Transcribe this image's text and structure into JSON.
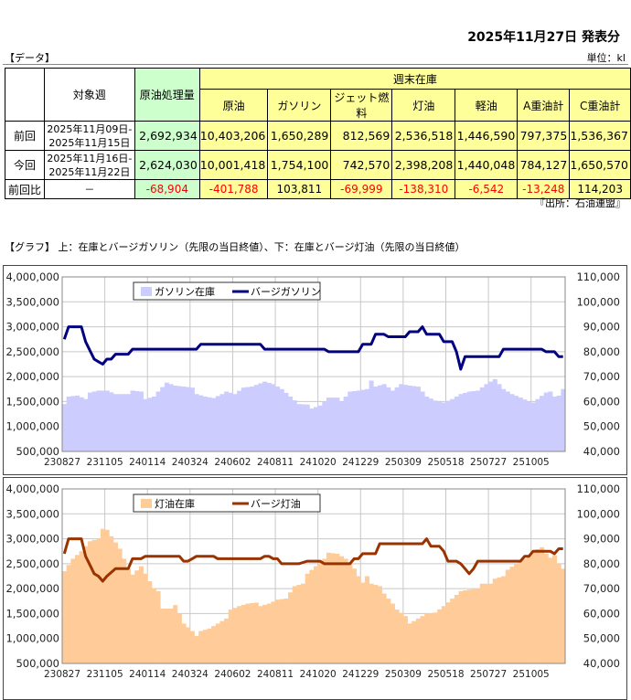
{
  "header": {
    "published": "2025年11月27日 発表分",
    "data_label": "【データ】",
    "unit": "単位：kl"
  },
  "table": {
    "col_week": "対象週",
    "col_crude_processing": "原油処理量",
    "group_stock": "週末在庫",
    "stock_cols": [
      "原油",
      "ガソリン",
      "ジェット燃料",
      "灯油",
      "軽油",
      "A重油計",
      "C重油計"
    ],
    "rows": [
      {
        "label": "前回",
        "week1": "2025年11月09日-",
        "week2": "2025年11月15日",
        "values": [
          "2,692,934",
          "10,403,206",
          "1,650,289",
          "812,569",
          "2,536,518",
          "1,446,590",
          "797,375",
          "1,536,367"
        ]
      },
      {
        "label": "今回",
        "week1": "2025年11月16日-",
        "week2": "2025年11月22日",
        "values": [
          "2,624,030",
          "10,001,418",
          "1,754,100",
          "742,570",
          "2,398,208",
          "1,440,048",
          "784,127",
          "1,650,570"
        ]
      },
      {
        "label": "前回比",
        "week1": "－",
        "values": [
          "-68,904",
          "-401,788",
          "103,811",
          "-69,999",
          "-138,310",
          "-6,542",
          "-13,248",
          "114,203"
        ]
      }
    ],
    "source": "『出所：石油連盟』"
  },
  "graph_label": "【グラフ】 上：在庫とバージガソリン（先限の当日終値）、下：在庫とバージ灯油（先限の当日終値）",
  "chart_data": [
    {
      "type": "bar+line",
      "title": "在庫とバージガソリン",
      "x_tick_labels": [
        "230827",
        "231105",
        "240114",
        "240324",
        "240602",
        "240811",
        "241020",
        "241229",
        "250309",
        "250518",
        "250727",
        "251005"
      ],
      "weeks": 118,
      "tick_every_weeks": 10,
      "ylim_left": [
        500000,
        4000000
      ],
      "ylim_right": [
        40000,
        110000
      ],
      "left_ticks": [
        "500,000",
        "1,000,000",
        "1,500,000",
        "2,000,000",
        "2,500,000",
        "3,000,000",
        "3,500,000",
        "4,000,000"
      ],
      "right_ticks": [
        "40,000",
        "50,000",
        "60,000",
        "70,000",
        "80,000",
        "90,000",
        "100,000",
        "110,000"
      ],
      "legend": "top-left",
      "bar_series": {
        "name": "ガソリン在庫",
        "color": "#ccccff",
        "points": [
          [
            0,
            1450000
          ],
          [
            1,
            1600000
          ],
          [
            3,
            1620000
          ],
          [
            5,
            1550000
          ],
          [
            6,
            1680000
          ],
          [
            8,
            1720000
          ],
          [
            10,
            1720000
          ],
          [
            12,
            1650000
          ],
          [
            15,
            1650000
          ],
          [
            16,
            1720000
          ],
          [
            18,
            1700000
          ],
          [
            19,
            1550000
          ],
          [
            21,
            1600000
          ],
          [
            22,
            1700000
          ],
          [
            24,
            1880000
          ],
          [
            26,
            1820000
          ],
          [
            28,
            1800000
          ],
          [
            30,
            1780000
          ],
          [
            31,
            1650000
          ],
          [
            33,
            1600000
          ],
          [
            35,
            1570000
          ],
          [
            37,
            1650000
          ],
          [
            38,
            1700000
          ],
          [
            40,
            1650000
          ],
          [
            42,
            1780000
          ],
          [
            44,
            1800000
          ],
          [
            47,
            1900000
          ],
          [
            49,
            1850000
          ],
          [
            51,
            1750000
          ],
          [
            53,
            1600000
          ],
          [
            55,
            1450000
          ],
          [
            57,
            1440000
          ],
          [
            58,
            1360000
          ],
          [
            60,
            1420000
          ],
          [
            62,
            1580000
          ],
          [
            64,
            1580000
          ],
          [
            65,
            1500000
          ],
          [
            67,
            1700000
          ],
          [
            69,
            1720000
          ],
          [
            71,
            1750000
          ],
          [
            72,
            1920000
          ],
          [
            73,
            1800000
          ],
          [
            75,
            1850000
          ],
          [
            77,
            1720000
          ],
          [
            79,
            1850000
          ],
          [
            81,
            1820000
          ],
          [
            83,
            1800000
          ],
          [
            85,
            1600000
          ],
          [
            87,
            1520000
          ],
          [
            89,
            1480000
          ],
          [
            91,
            1550000
          ],
          [
            93,
            1650000
          ],
          [
            95,
            1700000
          ],
          [
            97,
            1720000
          ],
          [
            99,
            1850000
          ],
          [
            101,
            1950000
          ],
          [
            103,
            1750000
          ],
          [
            105,
            1650000
          ],
          [
            107,
            1580000
          ],
          [
            109,
            1500000
          ],
          [
            110,
            1480000
          ],
          [
            111,
            1550000
          ],
          [
            113,
            1680000
          ],
          [
            114,
            1700000
          ],
          [
            115,
            1600000
          ],
          [
            116,
            1620000
          ],
          [
            117,
            1750000
          ]
        ]
      },
      "line_series": {
        "name": "バージガソリン",
        "color": "#000080",
        "points": [
          [
            0,
            85000
          ],
          [
            1,
            90000
          ],
          [
            4,
            90000
          ],
          [
            5,
            84000
          ],
          [
            7,
            77000
          ],
          [
            9,
            75000
          ],
          [
            10,
            77000
          ],
          [
            11,
            77000
          ],
          [
            12,
            79000
          ],
          [
            15,
            79000
          ],
          [
            16,
            81000
          ],
          [
            31,
            81000
          ],
          [
            32,
            83000
          ],
          [
            46,
            83000
          ],
          [
            47,
            81000
          ],
          [
            61,
            81000
          ],
          [
            62,
            80000
          ],
          [
            69,
            80000
          ],
          [
            70,
            83000
          ],
          [
            72,
            83000
          ],
          [
            73,
            87000
          ],
          [
            75,
            87000
          ],
          [
            76,
            86000
          ],
          [
            80,
            86000
          ],
          [
            81,
            88000
          ],
          [
            83,
            88000
          ],
          [
            84,
            90000
          ],
          [
            85,
            87000
          ],
          [
            88,
            87000
          ],
          [
            89,
            84000
          ],
          [
            91,
            84000
          ],
          [
            92,
            80000
          ],
          [
            93,
            73000
          ],
          [
            94,
            78000
          ],
          [
            102,
            78000
          ],
          [
            103,
            81000
          ],
          [
            112,
            81000
          ],
          [
            113,
            80000
          ],
          [
            115,
            80000
          ],
          [
            116,
            78000
          ],
          [
            117,
            78000
          ]
        ]
      }
    },
    {
      "type": "bar+line",
      "title": "在庫とバージ灯油",
      "x_tick_labels": [
        "230827",
        "231105",
        "240114",
        "240324",
        "240602",
        "240811",
        "241020",
        "241229",
        "250309",
        "250518",
        "250727",
        "251005"
      ],
      "weeks": 118,
      "tick_every_weeks": 10,
      "ylim_left": [
        500000,
        4000000
      ],
      "ylim_right": [
        40000,
        110000
      ],
      "left_ticks": [
        "500,000",
        "1,000,000",
        "1,500,000",
        "2,000,000",
        "2,500,000",
        "3,000,000",
        "3,500,000",
        "4,000,000"
      ],
      "right_ticks": [
        "40,000",
        "50,000",
        "60,000",
        "70,000",
        "80,000",
        "90,000",
        "100,000",
        "110,000"
      ],
      "legend": "top-left",
      "bar_series": {
        "name": "灯油在庫",
        "color": "#ffcc99",
        "points": [
          [
            0,
            2350000
          ],
          [
            2,
            2600000
          ],
          [
            4,
            2750000
          ],
          [
            6,
            2950000
          ],
          [
            8,
            3000000
          ],
          [
            9,
            3200000
          ],
          [
            10,
            3180000
          ],
          [
            11,
            3050000
          ],
          [
            13,
            2800000
          ],
          [
            15,
            2400000
          ],
          [
            16,
            2280000
          ],
          [
            18,
            2450000
          ],
          [
            19,
            2300000
          ],
          [
            20,
            2150000
          ],
          [
            21,
            2000000
          ],
          [
            22,
            1950000
          ],
          [
            23,
            1600000
          ],
          [
            25,
            1600000
          ],
          [
            26,
            1670000
          ],
          [
            27,
            1500000
          ],
          [
            28,
            1300000
          ],
          [
            30,
            1150000
          ],
          [
            31,
            1050000
          ],
          [
            32,
            1150000
          ],
          [
            34,
            1200000
          ],
          [
            36,
            1300000
          ],
          [
            38,
            1400000
          ],
          [
            39,
            1580000
          ],
          [
            41,
            1650000
          ],
          [
            43,
            1700000
          ],
          [
            45,
            1720000
          ],
          [
            46,
            1650000
          ],
          [
            48,
            1700000
          ],
          [
            50,
            1780000
          ],
          [
            52,
            1800000
          ],
          [
            54,
            2050000
          ],
          [
            56,
            2100000
          ],
          [
            57,
            2300000
          ],
          [
            59,
            2450000
          ],
          [
            61,
            2600000
          ],
          [
            62,
            2720000
          ],
          [
            64,
            2700000
          ],
          [
            66,
            2600000
          ],
          [
            68,
            2400000
          ],
          [
            69,
            2250000
          ],
          [
            70,
            2120000
          ],
          [
            71,
            2250000
          ],
          [
            72,
            2100000
          ],
          [
            74,
            2050000
          ],
          [
            75,
            1900000
          ],
          [
            77,
            1700000
          ],
          [
            78,
            1580000
          ],
          [
            80,
            1450000
          ],
          [
            81,
            1300000
          ],
          [
            83,
            1400000
          ],
          [
            85,
            1500000
          ],
          [
            87,
            1520000
          ],
          [
            89,
            1650000
          ],
          [
            91,
            1800000
          ],
          [
            93,
            1950000
          ],
          [
            95,
            1980000
          ],
          [
            97,
            2000000
          ],
          [
            98,
            2100000
          ],
          [
            100,
            2100000
          ],
          [
            101,
            2200000
          ],
          [
            103,
            2250000
          ],
          [
            104,
            2380000
          ],
          [
            106,
            2500000
          ],
          [
            108,
            2600000
          ],
          [
            110,
            2750000
          ],
          [
            112,
            2830000
          ],
          [
            113,
            2700000
          ],
          [
            114,
            2620000
          ],
          [
            115,
            2670000
          ],
          [
            116,
            2500000
          ],
          [
            117,
            2400000
          ]
        ]
      },
      "line_series": {
        "name": "バージ灯油",
        "color": "#993300",
        "points": [
          [
            0,
            84000
          ],
          [
            1,
            90000
          ],
          [
            4,
            90000
          ],
          [
            5,
            83000
          ],
          [
            7,
            76000
          ],
          [
            8,
            75000
          ],
          [
            9,
            73000
          ],
          [
            10,
            75000
          ],
          [
            12,
            78000
          ],
          [
            15,
            78000
          ],
          [
            16,
            82000
          ],
          [
            18,
            82000
          ],
          [
            19,
            83000
          ],
          [
            27,
            83000
          ],
          [
            28,
            81000
          ],
          [
            29,
            81000
          ],
          [
            31,
            83000
          ],
          [
            35,
            83000
          ],
          [
            36,
            82000
          ],
          [
            46,
            82000
          ],
          [
            47,
            83000
          ],
          [
            48,
            83000
          ],
          [
            49,
            82000
          ],
          [
            50,
            82000
          ],
          [
            51,
            80000
          ],
          [
            55,
            80000
          ],
          [
            57,
            81000
          ],
          [
            60,
            81000
          ],
          [
            61,
            80000
          ],
          [
            67,
            80000
          ],
          [
            68,
            82000
          ],
          [
            69,
            82000
          ],
          [
            70,
            84000
          ],
          [
            73,
            84000
          ],
          [
            74,
            88000
          ],
          [
            84,
            88000
          ],
          [
            85,
            90000
          ],
          [
            86,
            87000
          ],
          [
            88,
            87000
          ],
          [
            89,
            85000
          ],
          [
            90,
            81000
          ],
          [
            92,
            81000
          ],
          [
            93,
            80000
          ],
          [
            95,
            76000
          ],
          [
            96,
            78000
          ],
          [
            97,
            81000
          ],
          [
            107,
            81000
          ],
          [
            108,
            83000
          ],
          [
            109,
            83000
          ],
          [
            110,
            85000
          ],
          [
            114,
            85000
          ],
          [
            115,
            84000
          ],
          [
            116,
            86000
          ],
          [
            117,
            86000
          ]
        ]
      }
    }
  ]
}
